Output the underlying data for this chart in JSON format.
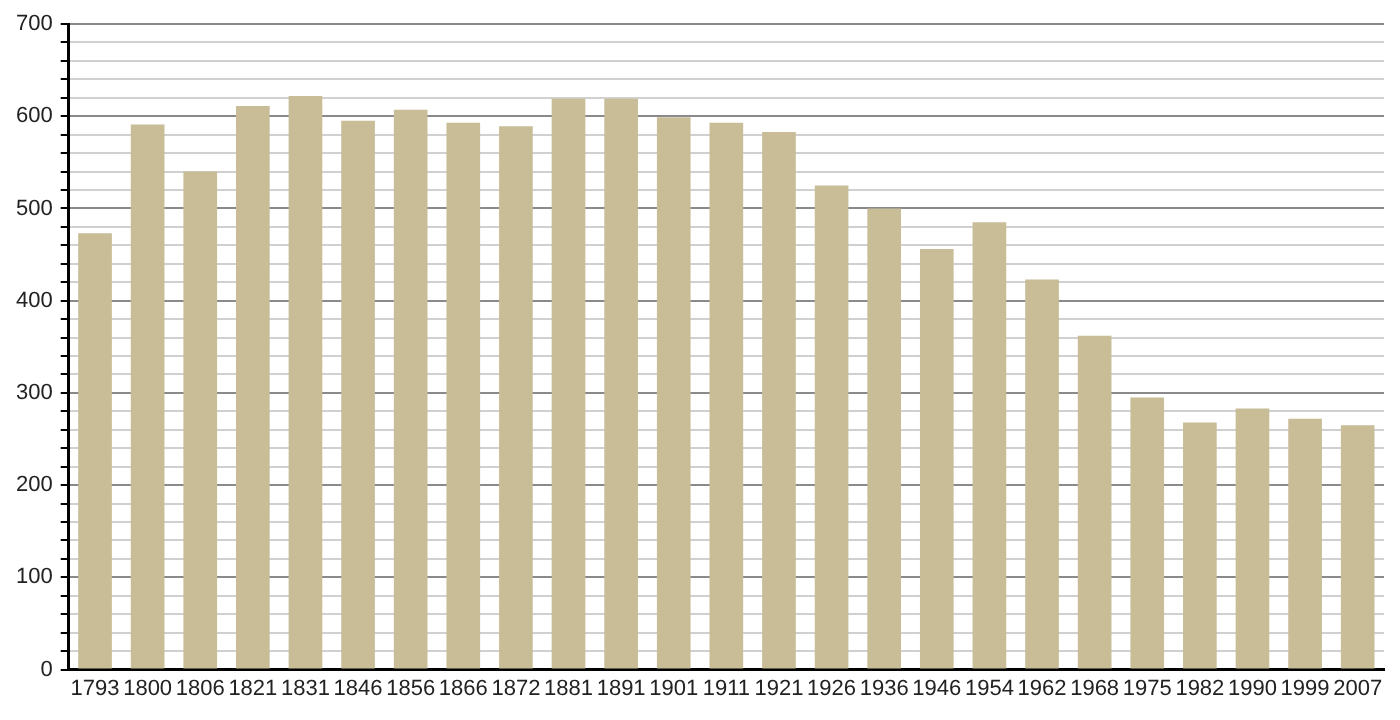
{
  "chart_data": {
    "type": "bar",
    "categories": [
      "1793",
      "1800",
      "1806",
      "1821",
      "1831",
      "1846",
      "1856",
      "1866",
      "1872",
      "1881",
      "1891",
      "1901",
      "1911",
      "1921",
      "1926",
      "1936",
      "1946",
      "1954",
      "1962",
      "1968",
      "1975",
      "1982",
      "1990",
      "1999",
      "2007"
    ],
    "values": [
      473,
      591,
      540,
      611,
      622,
      595,
      607,
      593,
      589,
      619,
      619,
      599,
      593,
      583,
      525,
      500,
      456,
      485,
      423,
      362,
      295,
      268,
      283,
      272,
      265
    ],
    "color": "#c8bd97",
    "ylim": [
      0,
      700
    ],
    "yticks": [
      0,
      {
        "value": 20,
        "label": null
      },
      {
        "value": 40,
        "label": null
      },
      {
        "value": 60,
        "label": null
      },
      {
        "value": 80,
        "label": null
      },
      100,
      {
        "value": 120,
        "label": null
      },
      {
        "value": 140,
        "label": null
      },
      {
        "value": 160,
        "label": null
      },
      {
        "value": 180,
        "label": null
      },
      200,
      {
        "value": 220,
        "label": null
      },
      {
        "value": 240,
        "label": null
      },
      {
        "value": 260,
        "label": null
      },
      {
        "value": 280,
        "label": null
      },
      300,
      {
        "value": 320,
        "label": null
      },
      {
        "value": 340,
        "label": null
      },
      {
        "value": 360,
        "label": null
      },
      {
        "value": 380,
        "label": null
      },
      400,
      {
        "value": 420,
        "label": null
      },
      {
        "value": 440,
        "label": null
      },
      {
        "value": 460,
        "label": null
      },
      {
        "value": 480,
        "label": null
      },
      500,
      {
        "value": 520,
        "label": null
      },
      {
        "value": 540,
        "label": null
      },
      {
        "value": 560,
        "label": null
      },
      {
        "value": 580,
        "label": null
      },
      600,
      {
        "value": 620,
        "label": null
      },
      {
        "value": 640,
        "label": null
      },
      {
        "value": 660,
        "label": null
      },
      {
        "value": 680,
        "label": null
      },
      700
    ],
    "grid": "y",
    "legend": false
  }
}
